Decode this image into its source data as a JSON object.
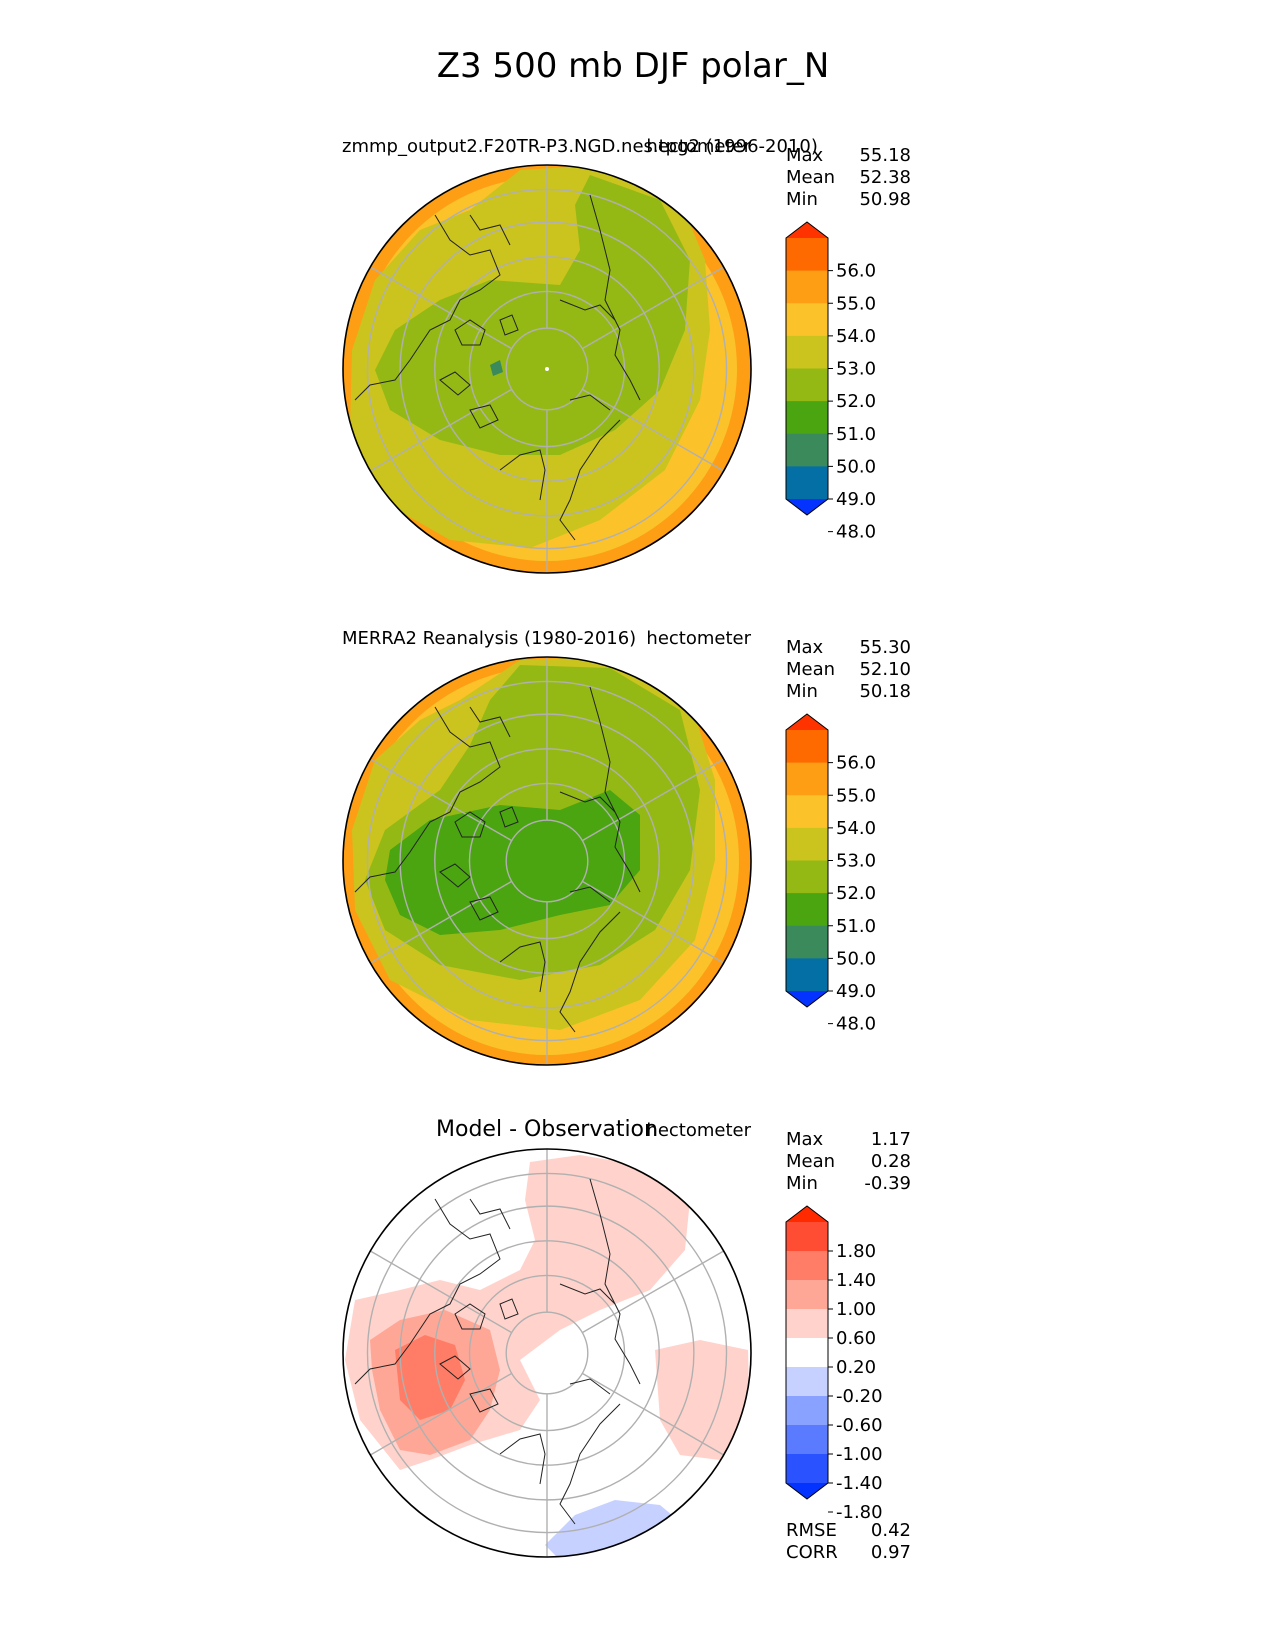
{
  "figure_title": "Z3 500 mb DJF polar_N",
  "panels": [
    {
      "title": "zmmp_output2.F20TR-P3.NGD.nes.tpg2 (1996-2010)",
      "units": "hectometer",
      "stats": [
        {
          "label": "Max",
          "value": "55.18"
        },
        {
          "label": "Mean",
          "value": "52.38"
        },
        {
          "label": "Min",
          "value": "50.98"
        }
      ],
      "colorbar_ticks": [
        "56.0",
        "55.0",
        "54.0",
        "53.0",
        "52.0",
        "51.0",
        "50.0",
        "49.0",
        "48.0"
      ]
    },
    {
      "title": "MERRA2 Reanalysis (1980-2016)",
      "units": "hectometer",
      "stats": [
        {
          "label": "Max",
          "value": "55.30"
        },
        {
          "label": "Mean",
          "value": "52.10"
        },
        {
          "label": "Min",
          "value": "50.18"
        }
      ],
      "colorbar_ticks": [
        "56.0",
        "55.0",
        "54.0",
        "53.0",
        "52.0",
        "51.0",
        "50.0",
        "49.0",
        "48.0"
      ]
    },
    {
      "title": "Model - Observation",
      "units": "hectometer",
      "stats": [
        {
          "label": "Max",
          "value": "1.17"
        },
        {
          "label": "Mean",
          "value": "0.28"
        },
        {
          "label": "Min",
          "value": "-0.39"
        }
      ],
      "colorbar_ticks": [
        "1.80",
        "1.40",
        "1.00",
        "0.60",
        "0.20",
        "-0.20",
        "-0.60",
        "-1.00",
        "-1.40",
        "-1.80"
      ],
      "metrics": [
        {
          "label": "RMSE",
          "value": "0.42"
        },
        {
          "label": "CORR",
          "value": "0.97"
        }
      ]
    }
  ],
  "chart_data": [
    {
      "type": "heatmap",
      "projection": "north polar stereographic",
      "title": "zmmp_output2.F20TR-P3.NGD.nes.tpg2 (1996-2010)",
      "variable": "Z3 500 mb DJF",
      "units": "hectometer",
      "max": 55.18,
      "mean": 52.38,
      "min": 50.98,
      "levels": [
        48,
        49,
        50,
        51,
        52,
        53,
        54,
        55,
        56
      ],
      "colors": [
        "#0433ff",
        "#046fa5",
        "#3a8a5c",
        "#4aa511",
        "#94b915",
        "#cbc41e",
        "#fcc22a",
        "#fd9e14",
        "#ff6a00",
        "#ff3300"
      ],
      "contour_radii_fraction": [
        {
          "level": 55,
          "r": 0.95
        },
        {
          "level": 54,
          "r": 0.88
        },
        {
          "level": 53,
          "r": 0.74
        },
        {
          "level": 52,
          "r": 0.48
        },
        {
          "level": 51,
          "r": 0.05
        }
      ]
    },
    {
      "type": "heatmap",
      "projection": "north polar stereographic",
      "title": "MERRA2 Reanalysis (1980-2016)",
      "variable": "Z3 500 mb DJF",
      "units": "hectometer",
      "max": 55.3,
      "mean": 52.1,
      "min": 50.18,
      "levels": [
        48,
        49,
        50,
        51,
        52,
        53,
        54,
        55,
        56
      ],
      "colors": [
        "#0433ff",
        "#046fa5",
        "#3a8a5c",
        "#4aa511",
        "#94b915",
        "#cbc41e",
        "#fcc22a",
        "#fd9e14",
        "#ff6a00",
        "#ff3300"
      ],
      "contour_radii_fraction": [
        {
          "level": 55,
          "r": 0.93
        },
        {
          "level": 54,
          "r": 0.86
        },
        {
          "level": 53,
          "r": 0.72
        },
        {
          "level": 52,
          "r": 0.55
        },
        {
          "level": 51,
          "r": 0.34
        }
      ]
    },
    {
      "type": "heatmap",
      "projection": "north polar stereographic",
      "title": "Model - Observation",
      "units": "hectometer",
      "max": 1.17,
      "mean": 0.28,
      "min": -0.39,
      "rmse": 0.42,
      "corr": 0.97,
      "levels": [
        -1.8,
        -1.4,
        -1.0,
        -0.6,
        -0.2,
        0.2,
        0.6,
        1.0,
        1.4,
        1.8
      ],
      "colors": [
        "#0433ff",
        "#2a52ff",
        "#5a7aff",
        "#8aa2ff",
        "#c7d1ff",
        "#ffffff",
        "#ffd3cc",
        "#ffa796",
        "#ff7d66",
        "#ff4d33",
        "#ff2a00"
      ]
    }
  ],
  "palettes": {
    "z3": [
      "#0433ff",
      "#046fa5",
      "#3a8a5c",
      "#4aa511",
      "#94b915",
      "#cbc41e",
      "#fcc22a",
      "#fd9e14",
      "#ff6a00",
      "#ff3300"
    ],
    "diff": [
      "#0433ff",
      "#2a52ff",
      "#5a7aff",
      "#8aa2ff",
      "#c7d1ff",
      "#ffffff",
      "#ffd3cc",
      "#ffa796",
      "#ff7d66",
      "#ff4d33",
      "#ff2a00"
    ]
  }
}
